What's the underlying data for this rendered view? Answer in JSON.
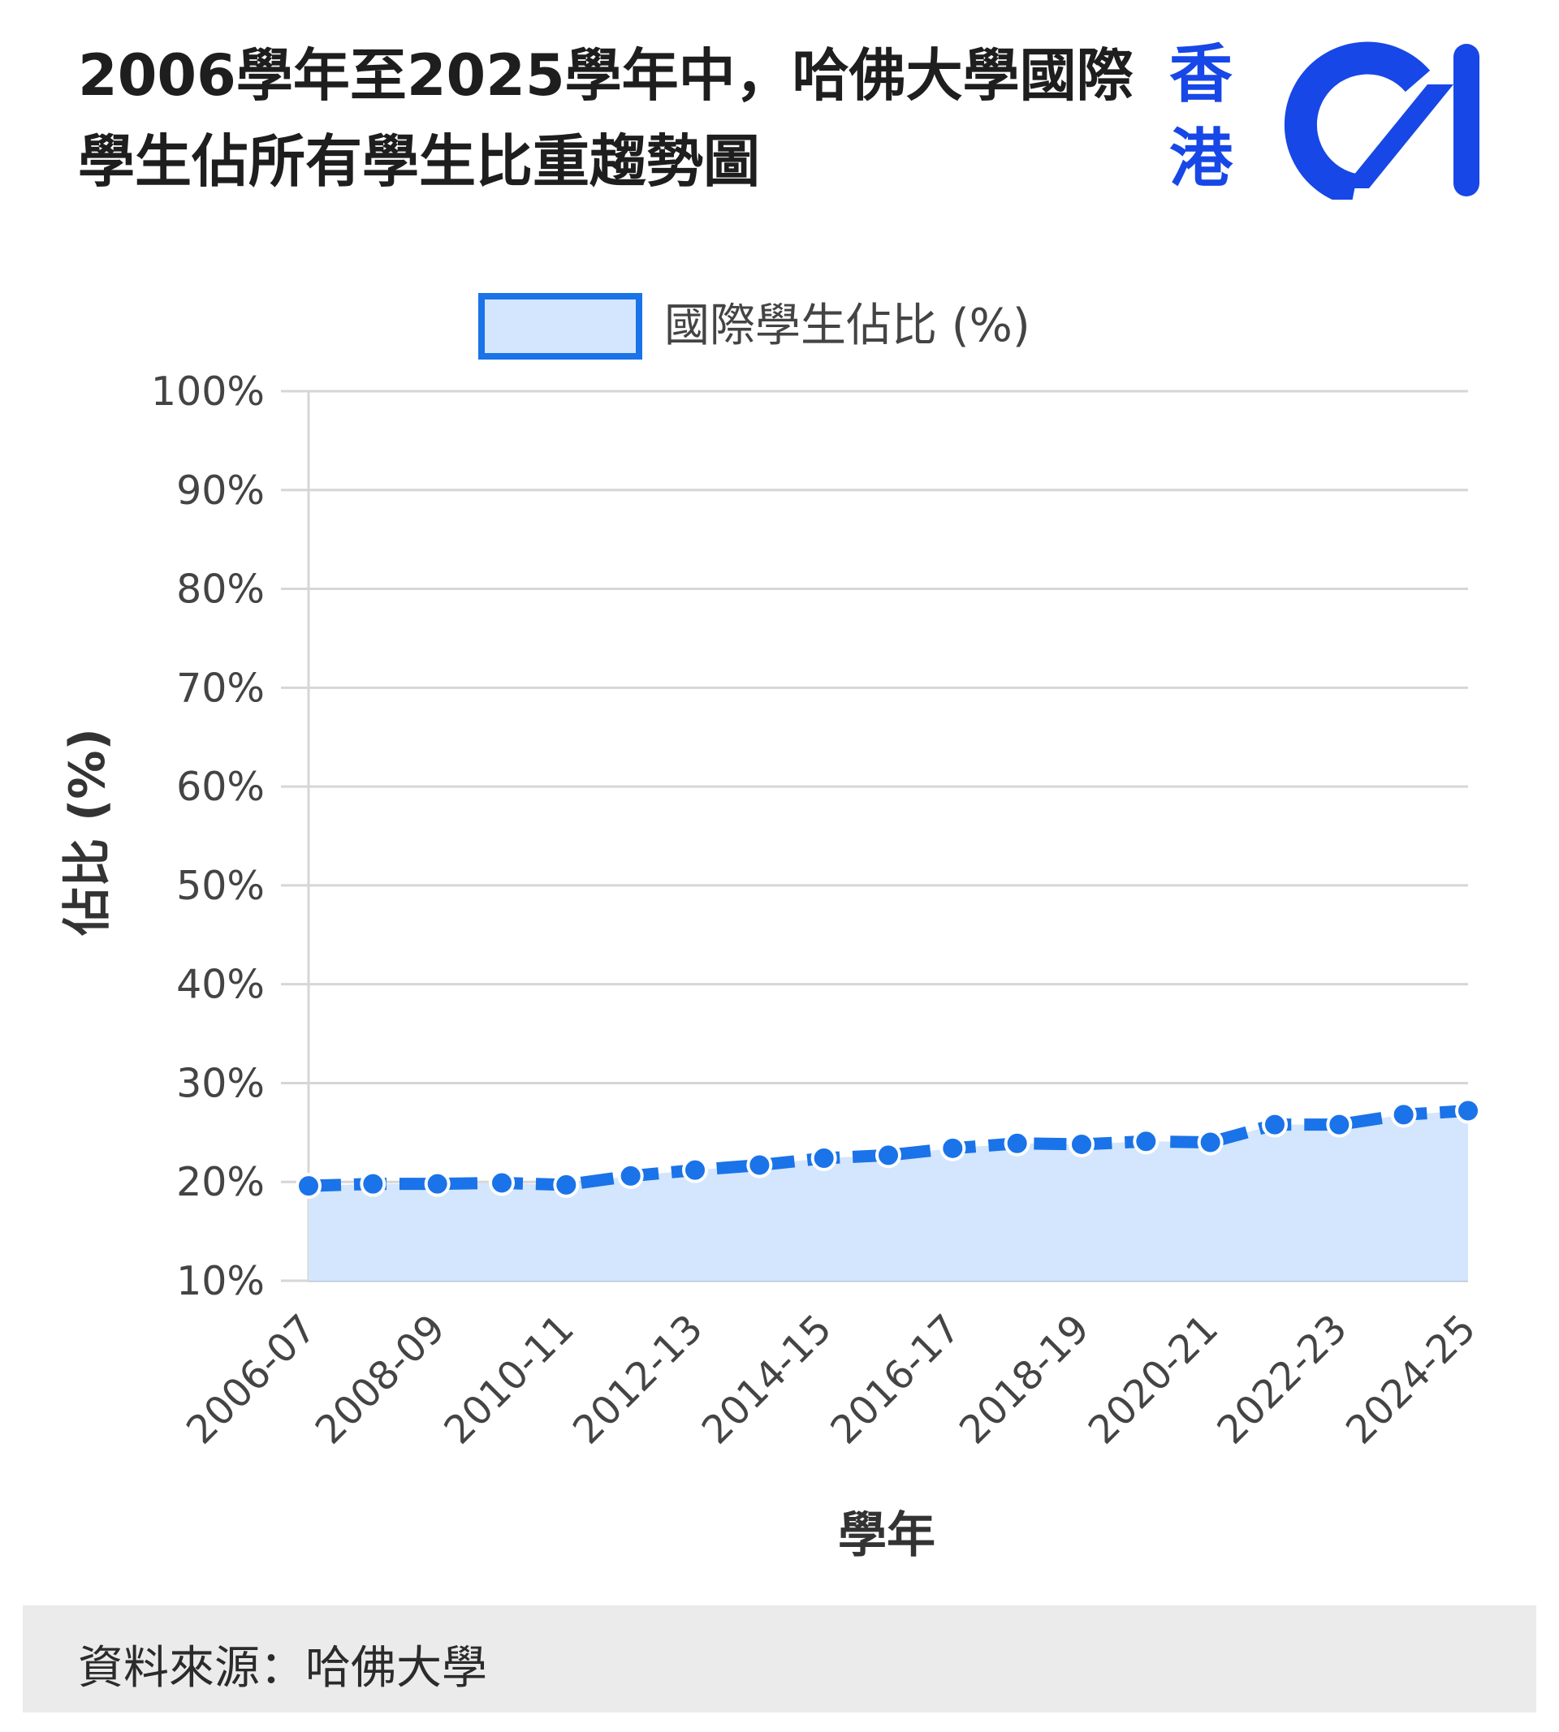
{
  "title": "2006學年至2025學年中，哈佛大學國際學生佔所有學生比重趨勢圖",
  "logo": {
    "text": "香港",
    "colors": {
      "brand": "#1747e6"
    }
  },
  "source": "資料來源：哈佛大學",
  "chart_data": {
    "type": "area",
    "legend": {
      "label": "國際學生佔比 (%)",
      "position": "top"
    },
    "xlabel": "學年",
    "ylabel": "佔比 (%)",
    "ylim": [
      10,
      100
    ],
    "yticks": [
      "10%",
      "20%",
      "30%",
      "40%",
      "50%",
      "60%",
      "70%",
      "80%",
      "90%",
      "100%"
    ],
    "x_tick_labels": [
      "2006-07",
      "2008-09",
      "2010-11",
      "2012-13",
      "2014-15",
      "2016-17",
      "2018-19",
      "2020-21",
      "2022-23",
      "2024-25"
    ],
    "grid": true,
    "series": [
      {
        "name": "國際學生佔比 (%)",
        "color": "#1a73e8",
        "fill": "#d3e6fd",
        "points": [
          19.6,
          19.8,
          19.8,
          19.9,
          19.7,
          20.6,
          21.2,
          21.7,
          22.4,
          22.7,
          23.4,
          23.9,
          23.8,
          24.1,
          24.0,
          25.8,
          25.8,
          26.8,
          27.2
        ]
      }
    ]
  }
}
